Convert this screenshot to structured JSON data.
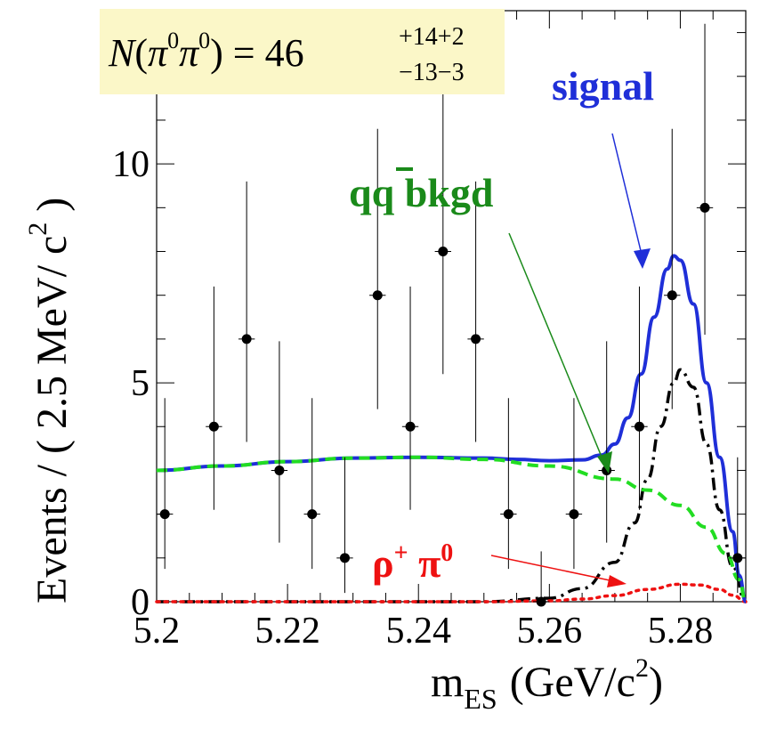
{
  "chart_data": {
    "type": "scatter",
    "title": "",
    "xlabel": "m_ES (GeV/c²)",
    "xlabel_main": "m",
    "xlabel_sub": "ES",
    "xlabel_unit_prefix": "(GeV/c",
    "xlabel_unit_power": "2",
    "xlabel_unit_suffix": ")",
    "ylabel": "Events / ( 2.5 MeV/ c² )",
    "ylabel_main": "Events / ( 2.5 MeV/ c",
    "ylabel_power": "2",
    "ylabel_suffix": " )",
    "xlim": [
      5.2,
      5.29
    ],
    "ylim": [
      0,
      13.5
    ],
    "x_ticks": [
      "5.2",
      "5.22",
      "5.24",
      "5.26",
      "5.28"
    ],
    "y_ticks": [
      "0",
      "5",
      "10"
    ],
    "points": [
      {
        "x": 5.20125,
        "y": 2,
        "ylo": 0.75,
        "yhi": 4.65
      },
      {
        "x": 5.20875,
        "y": 4,
        "ylo": 2.1,
        "yhi": 7.2
      },
      {
        "x": 5.21375,
        "y": 6,
        "ylo": 3.65,
        "yhi": 9.6
      },
      {
        "x": 5.21875,
        "y": 3,
        "ylo": 1.35,
        "yhi": 5.95
      },
      {
        "x": 5.22375,
        "y": 2,
        "ylo": 0.75,
        "yhi": 4.65
      },
      {
        "x": 5.22875,
        "y": 1,
        "ylo": 0.2,
        "yhi": 3.3
      },
      {
        "x": 5.23375,
        "y": 7,
        "ylo": 4.4,
        "yhi": 10.8
      },
      {
        "x": 5.23875,
        "y": 4,
        "ylo": 2.1,
        "yhi": 7.2
      },
      {
        "x": 5.24375,
        "y": 8,
        "ylo": 5.2,
        "yhi": 12.0
      },
      {
        "x": 5.24875,
        "y": 6,
        "ylo": 3.65,
        "yhi": 9.6
      },
      {
        "x": 5.25375,
        "y": 2,
        "ylo": 0.75,
        "yhi": 4.65
      },
      {
        "x": 5.25875,
        "y": 0,
        "ylo": 0,
        "yhi": 1.15
      },
      {
        "x": 5.26375,
        "y": 2,
        "ylo": 0.75,
        "yhi": 4.65
      },
      {
        "x": 5.26875,
        "y": 3,
        "ylo": 1.35,
        "yhi": 5.95
      },
      {
        "x": 5.27375,
        "y": 4,
        "ylo": 2.1,
        "yhi": 7.2
      },
      {
        "x": 5.27875,
        "y": 7,
        "ylo": 4.4,
        "yhi": 10.8
      },
      {
        "x": 5.28375,
        "y": 9,
        "ylo": 6.1,
        "yhi": 13.2
      },
      {
        "x": 5.28875,
        "y": 1,
        "ylo": 0.2,
        "yhi": 3.3
      }
    ],
    "bin_half_width": 0.00125,
    "series": [
      {
        "name": "signal",
        "label": "signal",
        "color": "#1f2fd8",
        "style": "solid",
        "x": [
          5.2,
          5.21,
          5.22,
          5.23,
          5.24,
          5.25,
          5.255,
          5.26,
          5.265,
          5.268,
          5.27,
          5.272,
          5.274,
          5.276,
          5.278,
          5.279,
          5.28,
          5.282,
          5.284,
          5.286,
          5.288,
          5.289,
          5.29
        ],
        "y": [
          3.0,
          3.1,
          3.2,
          3.28,
          3.3,
          3.28,
          3.25,
          3.22,
          3.24,
          3.35,
          3.6,
          4.2,
          5.2,
          6.5,
          7.6,
          7.9,
          7.8,
          6.8,
          5.0,
          3.3,
          1.6,
          0.6,
          0.0
        ]
      },
      {
        "name": "qq bkgd",
        "label": "qq̄ bkgd",
        "color": "#22dd22",
        "style": "dashed",
        "x": [
          5.2,
          5.21,
          5.22,
          5.23,
          5.24,
          5.25,
          5.26,
          5.27,
          5.275,
          5.28,
          5.284,
          5.287,
          5.289,
          5.29
        ],
        "y": [
          3.0,
          3.1,
          3.2,
          3.28,
          3.3,
          3.25,
          3.1,
          2.8,
          2.55,
          2.2,
          1.7,
          1.1,
          0.5,
          0.0
        ]
      },
      {
        "name": "B background",
        "label": "",
        "color": "#000000",
        "style": "dashdot",
        "x": [
          5.2,
          5.25,
          5.26,
          5.265,
          5.27,
          5.273,
          5.275,
          5.277,
          5.279,
          5.28,
          5.282,
          5.284,
          5.286,
          5.288,
          5.29
        ],
        "y": [
          0.0,
          0.0,
          0.08,
          0.3,
          0.9,
          1.8,
          2.8,
          4.0,
          5.0,
          5.3,
          4.9,
          3.6,
          2.1,
          0.8,
          0.0
        ]
      },
      {
        "name": "rho+ pi0",
        "label": "ρ⁺π⁰",
        "color": "#ee1111",
        "style": "dotted",
        "x": [
          5.2,
          5.25,
          5.26,
          5.265,
          5.27,
          5.275,
          5.28,
          5.283,
          5.286,
          5.288,
          5.29
        ],
        "y": [
          0.0,
          0.0,
          0.02,
          0.06,
          0.14,
          0.28,
          0.4,
          0.38,
          0.28,
          0.15,
          0.0
        ]
      }
    ],
    "annotations": {
      "yield_lhs": "N",
      "yield_open": "(",
      "yield_pi1": "π",
      "yield_sup1": "0",
      "yield_pi2": "π",
      "yield_sup2": "0",
      "yield_close": ") = 46",
      "yield_err_up": "+14+2",
      "yield_err_down": "−13−3",
      "signal_text": "signal",
      "qq_text_q1": "q",
      "qq_text_q2": "q",
      "qq_text_rest": " bkgd",
      "rho_text": "ρ",
      "rho_sup": "+",
      "pi_text": " π",
      "pi_sup": "0"
    },
    "colors": {
      "signal": "#1f2fd8",
      "qq": "#1a8a1a",
      "rho": "#ee1111",
      "box": "#fbf7c8",
      "points": "#000000"
    }
  }
}
